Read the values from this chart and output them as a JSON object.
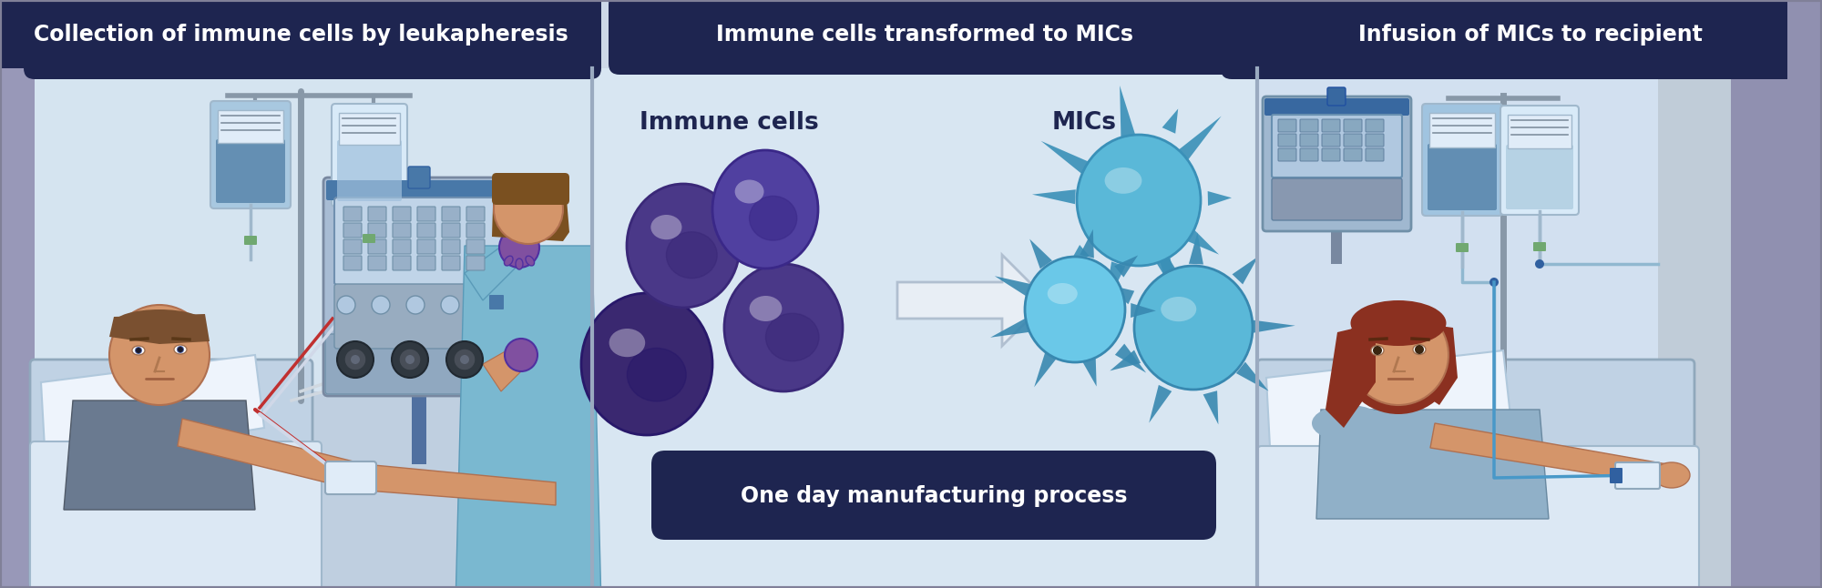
{
  "fig_width": 20.0,
  "fig_height": 6.46,
  "dpi": 100,
  "bg_color": "#cdd8e8",
  "panel_bg_left": "#c2d4e8",
  "panel_bg_mid": "#d8e6f2",
  "panel_bg_right": "#c2d4e8",
  "wall_left": "#d5e4f0",
  "wall_right": "#d0dff0",
  "floor_left": "#bfcfe0",
  "header_color": "#1e2550",
  "header_text_color": "#ffffff",
  "header1": "Collection of immune cells by leukapheresis",
  "header2": "Immune cells transformed to MICs",
  "header3": "Infusion of MICs to recipient",
  "label_immune": "Immune cells",
  "label_mics": "MICs",
  "label_bottom": "One day manufacturing process",
  "immune_cell_color1": "#4a3888",
  "immune_cell_color2": "#3a2870",
  "immune_cell_color3": "#5a4898",
  "mic_cell_color": "#5ab8d8",
  "mic_cell_dark": "#3a90b8",
  "mic_cell_light": "#80c8e0",
  "arrow_fill": "#e8eef5",
  "arrow_edge": "#b0bfd0",
  "separator_color": "#9aaac0",
  "text_label_color": "#1e2550",
  "patient_skin": "#d4956a",
  "patient_skin2": "#c08060",
  "male_hair": "#7a5030",
  "female_hair": "#8b3020",
  "nurse_gown": "#7ab8d0",
  "nurse_skin": "#d4956a",
  "machine_body": "#a8bcd8",
  "machine_screen": "#7098b8",
  "machine_panel": "#8090a8",
  "iv_bag_blue": "#a0c8e8",
  "iv_bag_clear": "#d8eaf5",
  "bed_frame": "#c8d8e8",
  "sheet_color": "#dce8f4",
  "pillow_color": "#eef4fc",
  "purple_glove": "#8050a0",
  "male_shirt": "#6a7a90",
  "female_gown": "#90b0c8",
  "right_wall": "#d8e2ee",
  "right_wall2": "#b8c8d8"
}
